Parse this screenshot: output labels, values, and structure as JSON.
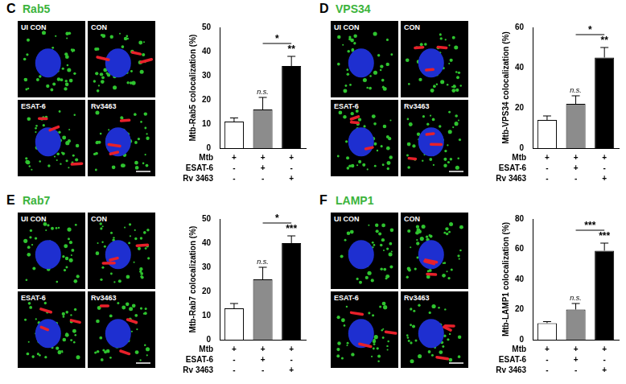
{
  "chart_data": [
    {
      "type": "bar",
      "panel_label": "C",
      "title": "Rab5",
      "image_labels": [
        "UI CON",
        "CON",
        "ESAT-6",
        "Rv3463"
      ],
      "y_label": "Mtb-Rab5 colocalization (%)",
      "categories": [
        null,
        null,
        null
      ],
      "conditions": [
        {
          "name": "Mtb",
          "signs": [
            "+",
            "+",
            "+"
          ]
        },
        {
          "name": "ESAT-6",
          "signs": [
            "-",
            "+",
            "-"
          ]
        },
        {
          "name": "Rv 3463",
          "signs": [
            "-",
            "-",
            "+"
          ]
        }
      ],
      "values": [
        11,
        16,
        34
      ],
      "errors": [
        1.5,
        5,
        4
      ],
      "colors": [
        "#ffffff",
        "#8c8c8c",
        "#000000"
      ],
      "annotations": [
        {
          "bar": 1,
          "text": "n.s."
        },
        {
          "bar": 2,
          "text": "**"
        }
      ],
      "bracket": {
        "from": 1,
        "to": 2,
        "text": "*"
      },
      "ylim": [
        0,
        50
      ],
      "yticks": [
        0,
        10,
        20,
        30,
        40,
        50
      ],
      "grid": false,
      "tick_labels": "y"
    },
    {
      "type": "bar",
      "panel_label": "D",
      "title": "VPS34",
      "image_labels": [
        "UI CON",
        "CON",
        "ESAT-6",
        "Rv3463"
      ],
      "y_label": "Mtb-VPS34 colocalization (%)",
      "categories": [
        null,
        null,
        null
      ],
      "conditions": [
        {
          "name": "Mtb",
          "signs": [
            "+",
            "+",
            "+"
          ]
        },
        {
          "name": "ESAT-6",
          "signs": [
            "-",
            "+",
            "-"
          ]
        },
        {
          "name": "Rv 3463",
          "signs": [
            "-",
            "-",
            "+"
          ]
        }
      ],
      "values": [
        14,
        22,
        45
      ],
      "errors": [
        2,
        4,
        5
      ],
      "colors": [
        "#ffffff",
        "#8c8c8c",
        "#000000"
      ],
      "annotations": [
        {
          "bar": 1,
          "text": "n.s."
        },
        {
          "bar": 2,
          "text": "**"
        }
      ],
      "bracket": {
        "from": 1,
        "to": 2,
        "text": "*"
      },
      "ylim": [
        0,
        60
      ],
      "yticks": [
        0,
        20,
        40,
        60
      ],
      "grid": false,
      "tick_labels": "y"
    },
    {
      "type": "bar",
      "panel_label": "E",
      "title": "Rab7",
      "image_labels": [
        "UI CON",
        "CON",
        "ESAT-6",
        "Rv3463"
      ],
      "y_label": "Mtb-Rab7 colocalization (%)",
      "categories": [
        null,
        null,
        null
      ],
      "conditions": [
        {
          "name": "Mtb",
          "signs": [
            "+",
            "+",
            "+"
          ]
        },
        {
          "name": "ESAT-6",
          "signs": [
            "-",
            "+",
            "-"
          ]
        },
        {
          "name": "Rv 3463",
          "signs": [
            "-",
            "-",
            "+"
          ]
        }
      ],
      "values": [
        13,
        25,
        40
      ],
      "errors": [
        2,
        5,
        3
      ],
      "colors": [
        "#ffffff",
        "#8c8c8c",
        "#000000"
      ],
      "annotations": [
        {
          "bar": 1,
          "text": "n.s."
        },
        {
          "bar": 2,
          "text": "***"
        }
      ],
      "bracket": {
        "from": 1,
        "to": 2,
        "text": "*"
      },
      "ylim": [
        0,
        50
      ],
      "yticks": [
        0,
        10,
        20,
        30,
        40,
        50
      ],
      "grid": false,
      "tick_labels": "y"
    },
    {
      "type": "bar",
      "panel_label": "F",
      "title": "LAMP1",
      "image_labels": [
        "UI CON",
        "CON",
        "ESAT-6",
        "Rv3463"
      ],
      "y_label": "Mtb-LAMP1 colocalization (%)",
      "categories": [
        null,
        null,
        null
      ],
      "conditions": [
        {
          "name": "Mtb",
          "signs": [
            "+",
            "+",
            "+"
          ]
        },
        {
          "name": "ESAT-6",
          "signs": [
            "-",
            "+",
            "-"
          ]
        },
        {
          "name": "Rv 3463",
          "signs": [
            "-",
            "-",
            "+"
          ]
        }
      ],
      "values": [
        11,
        20,
        59
      ],
      "errors": [
        1,
        4,
        5
      ],
      "colors": [
        "#ffffff",
        "#8c8c8c",
        "#000000"
      ],
      "annotations": [
        {
          "bar": 1,
          "text": "n.s."
        },
        {
          "bar": 2,
          "text": "***"
        }
      ],
      "bracket": {
        "from": 1,
        "to": 2,
        "text": "***"
      },
      "ylim": [
        0,
        80
      ],
      "yticks": [
        0,
        20,
        40,
        60,
        80
      ],
      "grid": false,
      "tick_labels": "y"
    }
  ]
}
